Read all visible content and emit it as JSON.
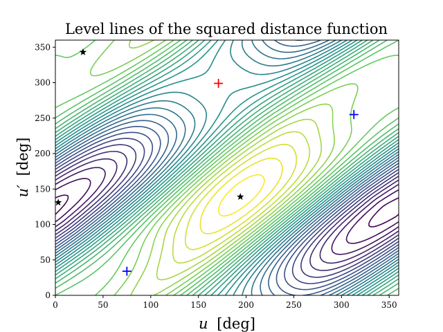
{
  "chart_data": {
    "type": "contour",
    "title": "Level lines of the squared distance function",
    "xlabel": {
      "var": "u",
      "unit": "[deg]"
    },
    "ylabel": {
      "var": "u′",
      "unit": "[deg]"
    },
    "xlim": [
      0,
      360
    ],
    "ylim": [
      0,
      360
    ],
    "xticks": [
      0,
      50,
      100,
      150,
      200,
      250,
      300,
      350
    ],
    "yticks": [
      0,
      50,
      100,
      150,
      200,
      250,
      300,
      350
    ],
    "colormap": [
      "#440154",
      "#3b528b",
      "#21918c",
      "#5ec962",
      "#fde725"
    ],
    "level_count": 30,
    "grid": false,
    "maxima": [
      {
        "u": 171,
        "up": 299,
        "marker": "plus",
        "color": "#ff0000"
      }
    ],
    "minima": [
      {
        "u": 75,
        "up": 34,
        "marker": "plus",
        "color": "#0000ff"
      },
      {
        "u": 313,
        "up": 255,
        "marker": "plus",
        "color": "#0000ff"
      }
    ],
    "saddles": [
      {
        "u": 29,
        "up": 343,
        "marker": "star",
        "color": "#000000"
      },
      {
        "u": 3,
        "up": 131,
        "marker": "star",
        "color": "#000000"
      },
      {
        "u": 194,
        "up": 139,
        "marker": "star",
        "color": "#000000"
      }
    ]
  }
}
